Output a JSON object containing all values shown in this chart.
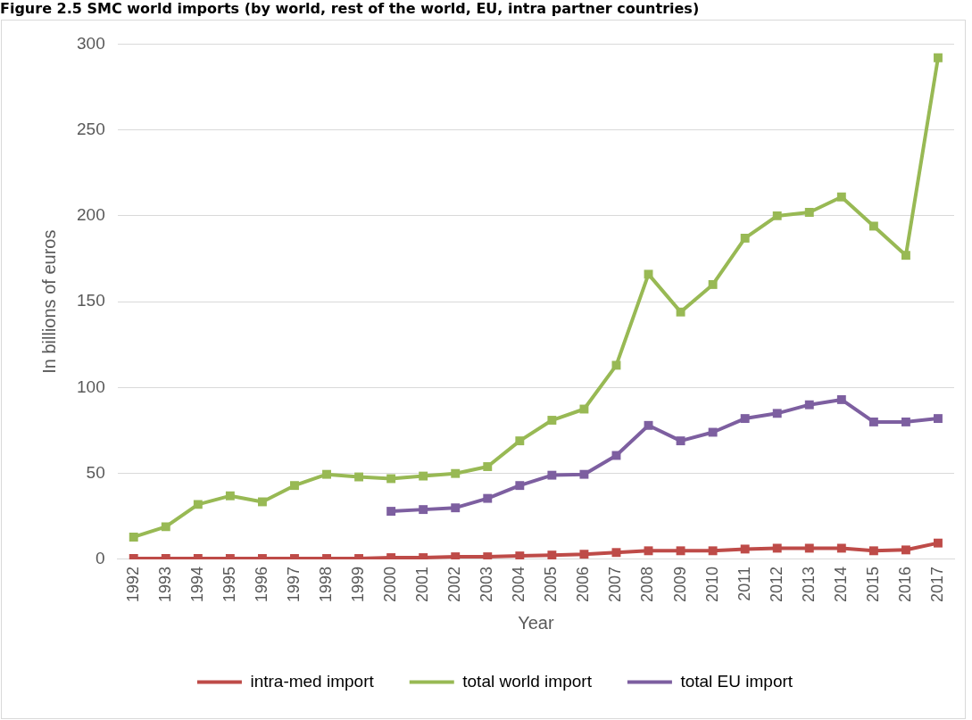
{
  "chart_data": {
    "type": "line",
    "title": "Figure 2.5 SMC world imports (by world, rest of the world, EU, intra partner countries)",
    "xlabel": "Year",
    "ylabel": "In billions of euros",
    "categories": [
      "1992",
      "1993",
      "1994",
      "1995",
      "1996",
      "1997",
      "1998",
      "1999",
      "2000",
      "2001",
      "2002",
      "2003",
      "2004",
      "2005",
      "2006",
      "2007",
      "2008",
      "2009",
      "2010",
      "2011",
      "2012",
      "2013",
      "2014",
      "2015",
      "2016",
      "2017"
    ],
    "series": [
      {
        "name": "intra-med import",
        "color": "#be4b48",
        "values": [
          0.5,
          0.5,
          0.5,
          0.5,
          0.5,
          0.5,
          0.5,
          0.5,
          1,
          1,
          1.5,
          1.5,
          2,
          2.5,
          3,
          4,
          5,
          5,
          5,
          6,
          6.5,
          6.5,
          6.5,
          5,
          5.5,
          9.5
        ]
      },
      {
        "name": "total world import",
        "color": "#98b954",
        "values": [
          13,
          19,
          32,
          37,
          33.5,
          43,
          49.5,
          48,
          47,
          48.5,
          50,
          54,
          69,
          81,
          87.5,
          113,
          166,
          144,
          160,
          187,
          200,
          202,
          211,
          194,
          177,
          292
        ]
      },
      {
        "name": "total EU import",
        "color": "#7d5fa0",
        "values": [
          null,
          null,
          null,
          null,
          null,
          null,
          null,
          null,
          28,
          29,
          30,
          35.5,
          43,
          49,
          49.5,
          60.5,
          78,
          69,
          74,
          82,
          85,
          90,
          93,
          80,
          80,
          82
        ]
      }
    ],
    "ylim": [
      0,
      300
    ],
    "yticks": [
      0,
      50,
      100,
      150,
      200,
      250,
      300
    ],
    "grid": "y",
    "legend": "bottom",
    "marker": "square",
    "line_style": "solid"
  }
}
